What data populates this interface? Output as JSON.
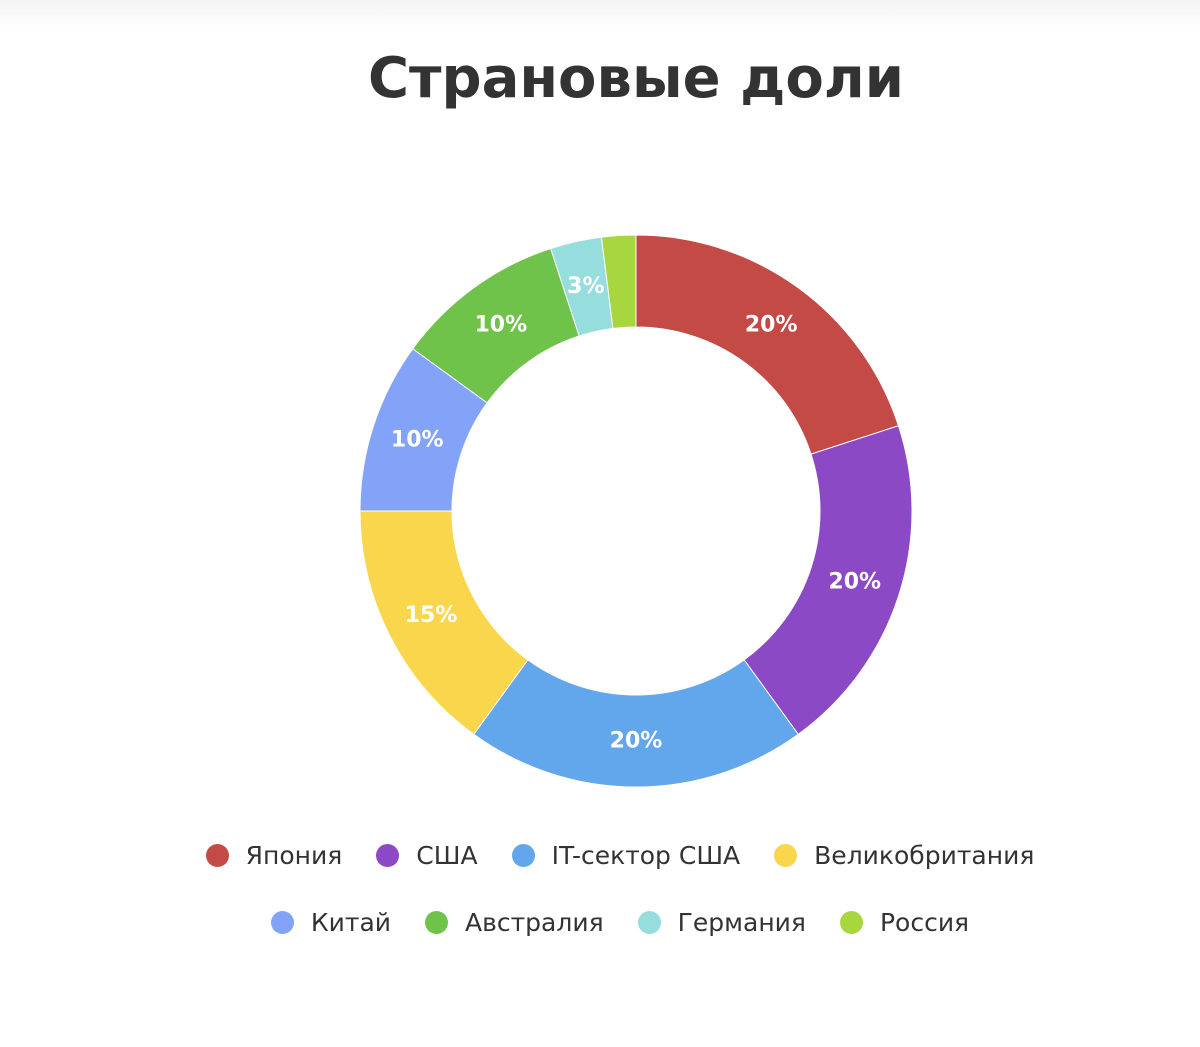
{
  "chart_data": {
    "type": "pie",
    "title": "Страновые доли",
    "categories": [
      "Япония",
      "США",
      "IT-сектор США",
      "Великобритания",
      "Китай",
      "Австралия",
      "Германия",
      "Россия"
    ],
    "values": [
      20,
      20,
      20,
      15,
      10,
      10,
      3,
      2
    ],
    "labels": [
      "20%",
      "20%",
      "20%",
      "15%",
      "10%",
      "10%",
      "3%",
      ""
    ],
    "colors": [
      "#c44a46",
      "#8b49c6",
      "#62a6ec",
      "#f9d64b",
      "#82a3f8",
      "#70c34a",
      "#96dede",
      "#a8d63e"
    ],
    "donut": true,
    "legend_position": "bottom"
  }
}
